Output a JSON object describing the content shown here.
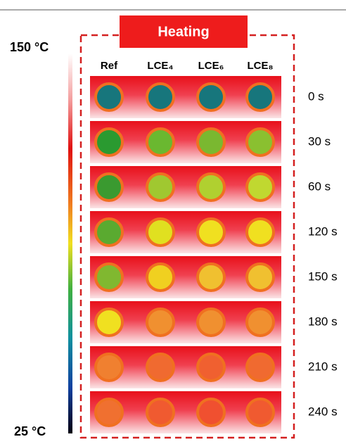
{
  "banner": "Heating",
  "scale": {
    "max_label": "150 °C",
    "min_label": "25 °C"
  },
  "columns": [
    "Ref",
    "LCE₄",
    "LCE₆",
    "LCE₈"
  ],
  "rows": [
    "0 s",
    "30 s",
    "60 s",
    "120 s",
    "150 s",
    "180 s",
    "210 s",
    "240 s"
  ]
}
